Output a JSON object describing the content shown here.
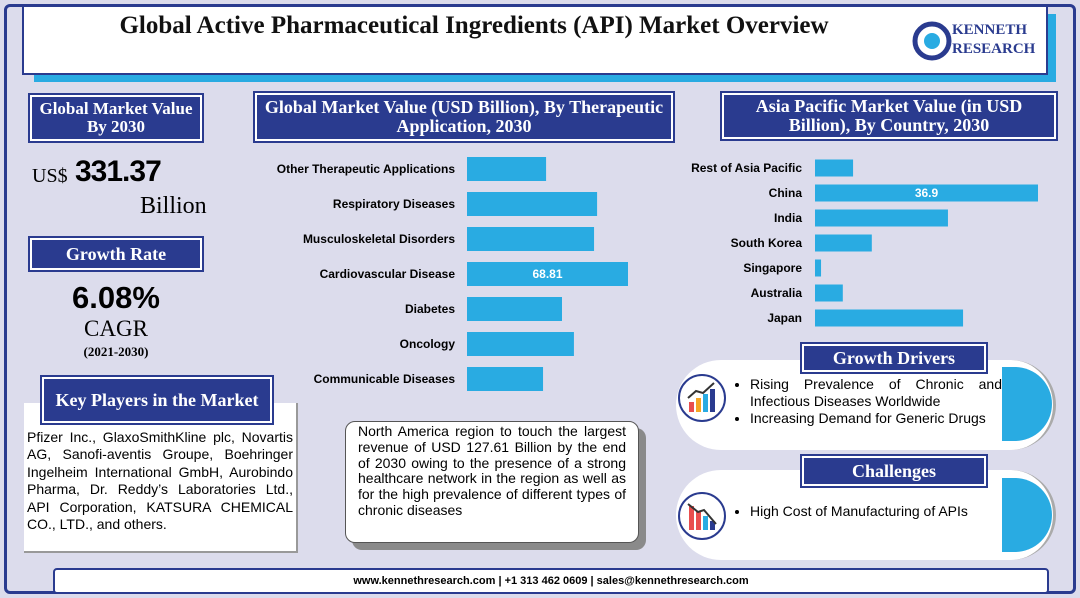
{
  "header": {
    "title": "Global Active Pharmaceutical Ingredients (API) Market Overview",
    "logo": [
      "KENNETH",
      "RESEARCH"
    ]
  },
  "market": {
    "heading": "Global Market Value By 2030",
    "currency": "US$",
    "value": "331.37",
    "unit": "Billion"
  },
  "growth": {
    "heading": "Growth Rate",
    "value": "6.08%",
    "label": "CAGR",
    "period": "(2021-2030)"
  },
  "key_players": {
    "heading": "Key Players in the Market",
    "text": "Pfizer Inc., GlaxoSmithKline plc, Novartis AG, Sanofi-aventis Groupe, Boehringer Ingelheim International GmbH, Aurobindo Pharma, Dr. Reddy’s Laboratories Ltd., API Corporation, KATSURA CHEMICAL CO., LTD., and others."
  },
  "note": {
    "text": "North America region to touch the largest revenue of USD 127.61 Billion by the end of 2030 owing to the presence of a strong healthcare network in the region as well as for the high prevalence of different types of chronic diseases"
  },
  "drivers": {
    "heading": "Growth Drivers",
    "items": [
      "Rising Prevalence of Chronic and Infectious Diseases Worldwide",
      "Increasing Demand for Generic Drugs"
    ]
  },
  "challenges": {
    "heading": "Challenges",
    "items": [
      "High Cost of Manufacturing of APIs"
    ]
  },
  "footer": {
    "text": "www.kennethresearch.com | +1 313 462 0609 | sales@kennethresearch.com"
  },
  "chart_data": [
    {
      "type": "bar",
      "orientation": "horizontal",
      "title": "Global Market Value (USD Billion), By Therapeutic Application, 2030",
      "categories": [
        "Other Therapeutic Applications",
        "Respiratory Diseases",
        "Musculoskeletal Disorders",
        "Cardiovascular Disease",
        "Diabetes",
        "Oncology",
        "Communicable Diseases"
      ],
      "values": [
        33.8,
        55.6,
        54.3,
        68.81,
        40.6,
        45.7,
        32.5
      ],
      "value_labels": [
        null,
        null,
        null,
        "68.81",
        null,
        null,
        null
      ],
      "color": "#29abe2"
    },
    {
      "type": "bar",
      "orientation": "horizontal",
      "title": "Asia Pacific Market Value (in USD Billion), By Country, 2030",
      "categories": [
        "Rest of Asia Pacific",
        "China",
        "India",
        "South Korea",
        "Singapore",
        "Australia",
        "Japan"
      ],
      "values": [
        6.3,
        36.9,
        22.0,
        9.4,
        1.0,
        4.6,
        24.5
      ],
      "value_labels": [
        null,
        "36.9",
        null,
        null,
        null,
        null,
        null
      ],
      "color": "#29abe2"
    }
  ]
}
